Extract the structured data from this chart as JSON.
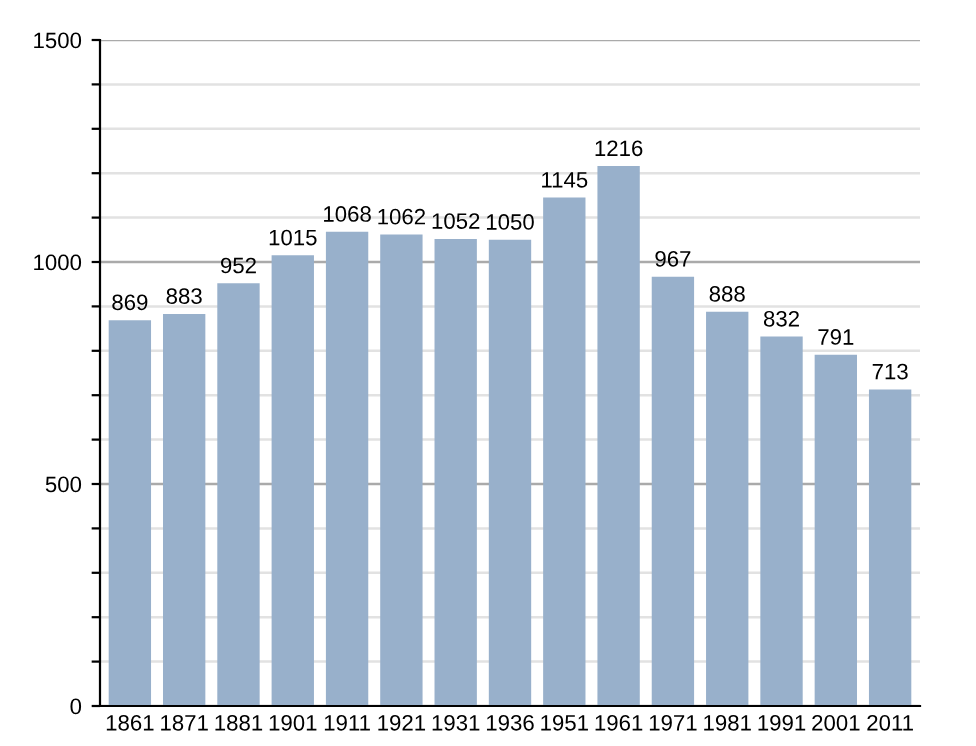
{
  "chart_data": {
    "type": "bar",
    "categories": [
      "1861",
      "1871",
      "1881",
      "1901",
      "1911",
      "1921",
      "1931",
      "1936",
      "1951",
      "1961",
      "1971",
      "1981",
      "1991",
      "2001",
      "2011"
    ],
    "values": [
      869,
      883,
      952,
      1015,
      1068,
      1062,
      1052,
      1050,
      1145,
      1216,
      967,
      888,
      832,
      791,
      713
    ],
    "color": "#98b0cb",
    "ylim": [
      0,
      1500
    ],
    "yticks": [
      0,
      {
        "value": 100,
        "label": null
      },
      {
        "value": 200,
        "label": null
      },
      {
        "value": 300,
        "label": null
      },
      {
        "value": 400,
        "label": null
      },
      500,
      {
        "value": 600,
        "label": null
      },
      {
        "value": 700,
        "label": null
      },
      {
        "value": 800,
        "label": null
      },
      {
        "value": 900,
        "label": null
      },
      1000,
      {
        "value": 1100,
        "label": null
      },
      {
        "value": 1200,
        "label": null
      },
      {
        "value": 1300,
        "label": null
      },
      {
        "value": 1400,
        "label": null
      },
      1500
    ],
    "grid": "y",
    "data_labels": true
  }
}
